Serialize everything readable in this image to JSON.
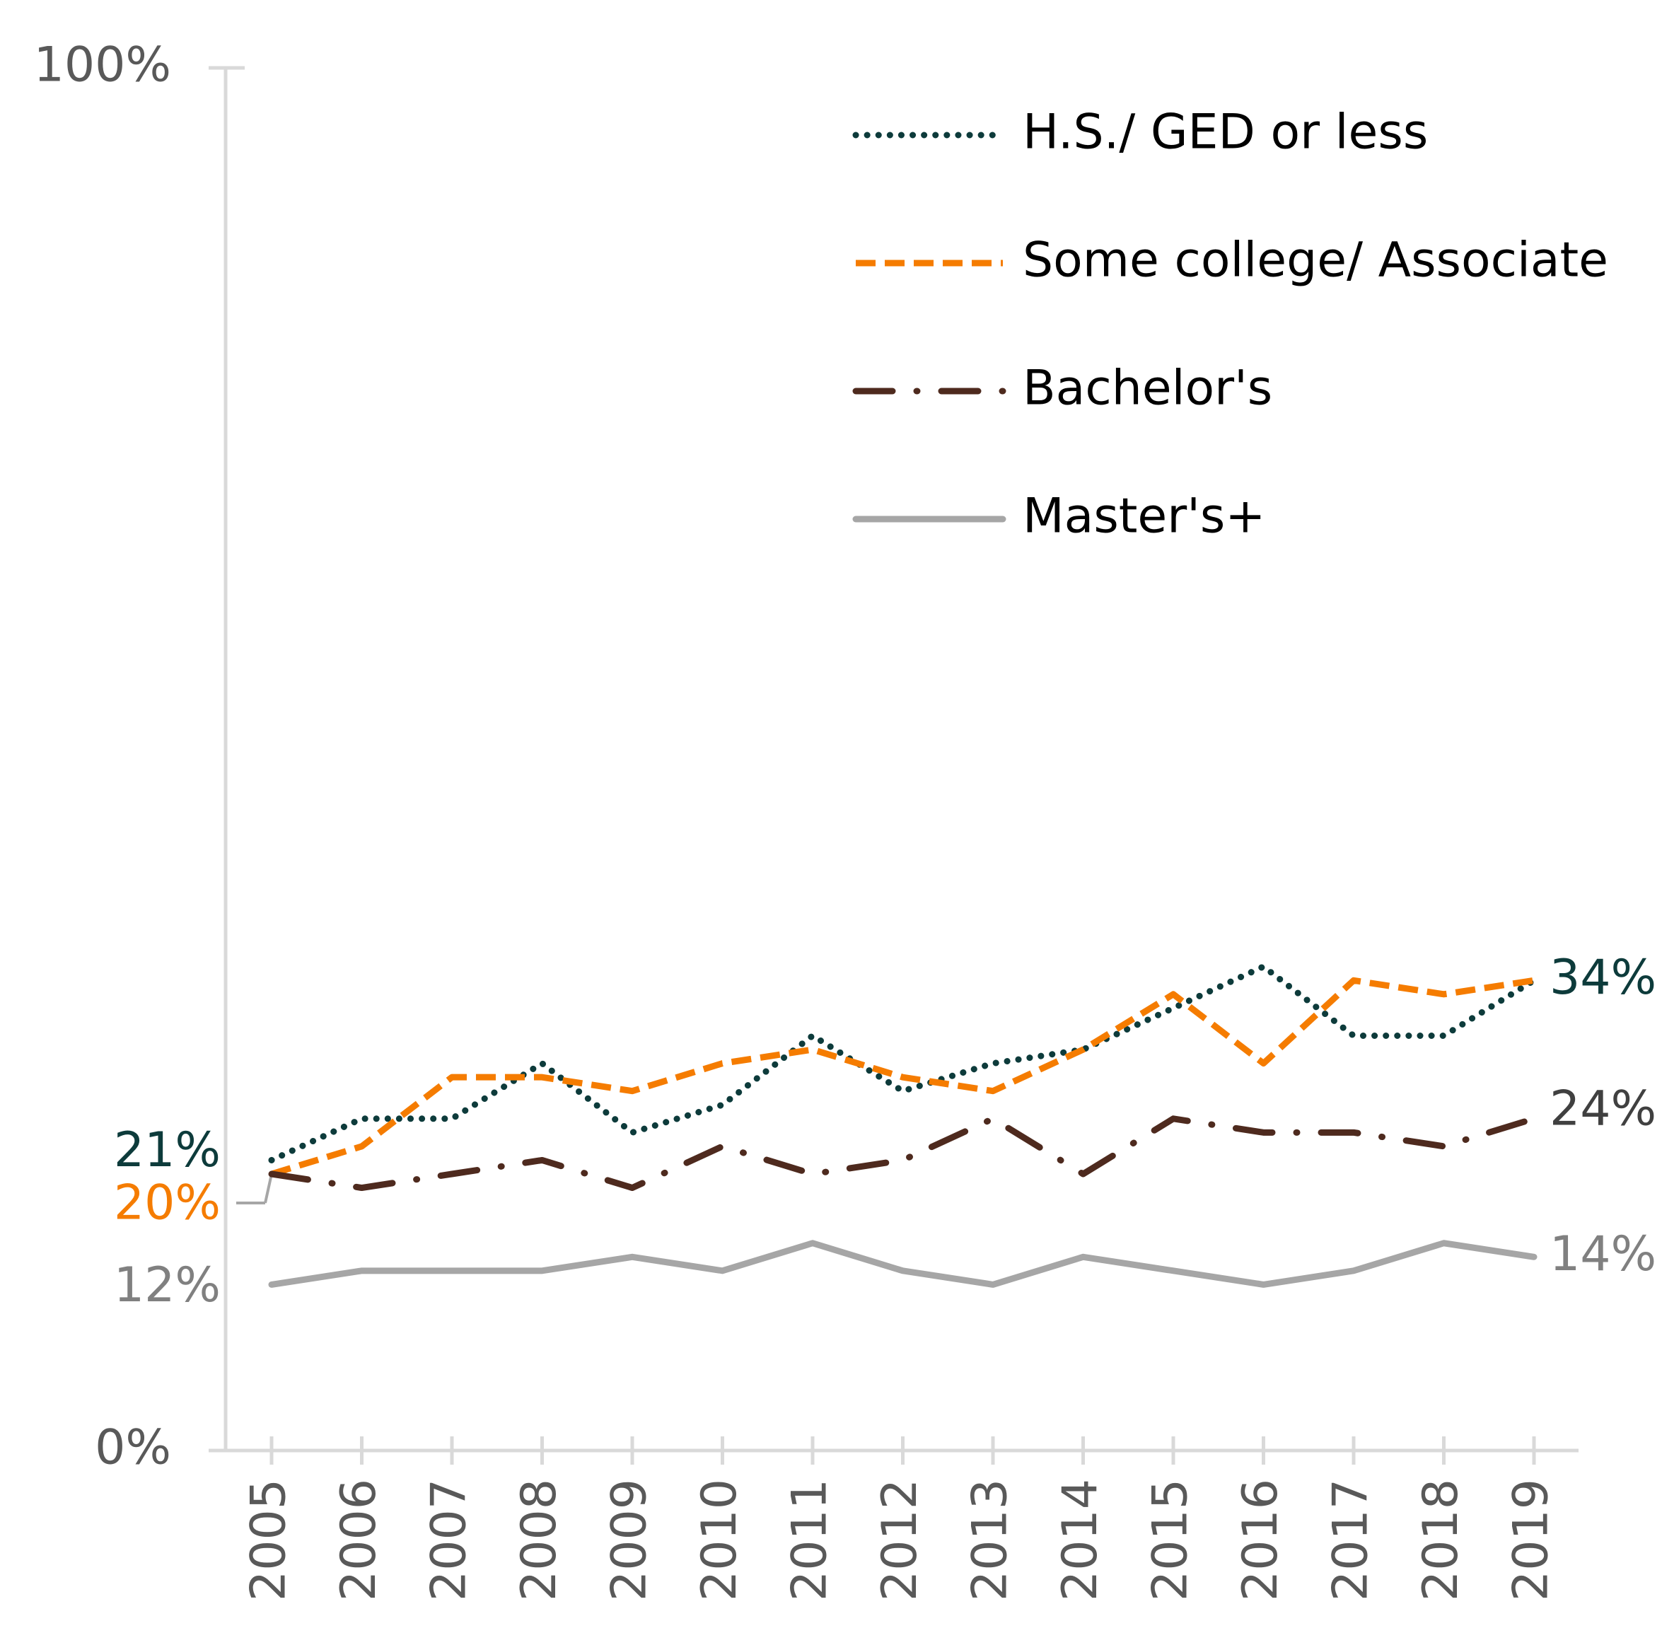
{
  "chart_data": {
    "type": "line",
    "categories": [
      "2005",
      "2006",
      "2007",
      "2008",
      "2009",
      "2010",
      "2011",
      "2012",
      "2013",
      "2014",
      "2015",
      "2016",
      "2017",
      "2018",
      "2019"
    ],
    "series": [
      {
        "name": "H.S./ GED or less",
        "color": "#0d3b3b",
        "dash": "dotted",
        "values": [
          21,
          24,
          24,
          28,
          23,
          25,
          30,
          26,
          28,
          29,
          32,
          35,
          30,
          30,
          34
        ],
        "value_labels": [
          "21%",
          null,
          null,
          null,
          null,
          null,
          null,
          null,
          null,
          null,
          null,
          null,
          null,
          null,
          "34%"
        ]
      },
      {
        "name": "Some college/ Associate",
        "color": "#f57c00",
        "dash": "dashed",
        "values": [
          20,
          22,
          27,
          27,
          26,
          28,
          29,
          27,
          26,
          29,
          33,
          28,
          34,
          33,
          34
        ],
        "value_labels": [
          "20%",
          null,
          null,
          null,
          null,
          null,
          null,
          null,
          null,
          null,
          null,
          null,
          null,
          null,
          null
        ]
      },
      {
        "name": "Bachelor's",
        "color": "#4e2a1e",
        "dash": "dashdot",
        "values": [
          20,
          19,
          20,
          21,
          19,
          22,
          20,
          21,
          24,
          20,
          24,
          23,
          23,
          22,
          24
        ],
        "value_labels": [
          null,
          null,
          null,
          null,
          null,
          null,
          null,
          null,
          null,
          null,
          null,
          null,
          null,
          null,
          "24%"
        ]
      },
      {
        "name": "Master's+",
        "color": "#a6a6a6",
        "dash": "solid",
        "values": [
          12,
          13,
          13,
          13,
          14,
          13,
          15,
          13,
          12,
          14,
          13,
          12,
          13,
          15,
          14
        ],
        "value_labels": [
          "12%",
          null,
          null,
          null,
          null,
          null,
          null,
          null,
          null,
          null,
          null,
          null,
          null,
          null,
          "14%"
        ]
      }
    ],
    "ylim": [
      0,
      100
    ],
    "yticks": [
      {
        "value": 0,
        "label": "0%"
      },
      {
        "value": 100,
        "label": "100%"
      }
    ],
    "grid": false,
    "legend": "top-right"
  }
}
